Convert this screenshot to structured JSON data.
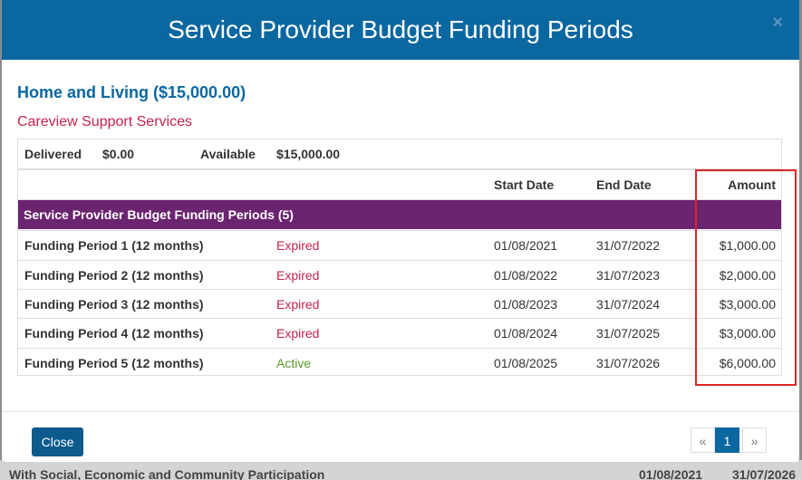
{
  "modal": {
    "title": "Service Provider Budget Funding Periods",
    "close_icon": "×"
  },
  "section": {
    "title": "Home and Living ($15,000.00)",
    "provider": "Careview Support Services"
  },
  "summary": {
    "delivered_label": "Delivered",
    "delivered": "$0.00",
    "available_label": "Available",
    "available": "$15,000.00"
  },
  "table": {
    "headers": [
      "Start Date",
      "End Date",
      "Amount"
    ],
    "group": "Service Provider Budget Funding Periods (5)",
    "rows": [
      [
        "Funding Period 1 (12 months)",
        "Expired",
        "01/08/2021",
        "31/07/2022",
        "$1,000.00"
      ],
      [
        "Funding Period 2 (12 months)",
        "Expired",
        "01/08/2022",
        "31/07/2023",
        "$2,000.00"
      ],
      [
        "Funding Period 3 (12 months)",
        "Expired",
        "01/08/2023",
        "31/07/2024",
        "$3,000.00"
      ],
      [
        "Funding Period 4 (12 months)",
        "Expired",
        "01/08/2024",
        "31/07/2025",
        "$3,000.00"
      ],
      [
        "Funding Period 5 (12 months)",
        "Active",
        "01/08/2025",
        "31/07/2026",
        "$6,000.00"
      ]
    ]
  },
  "footer": {
    "close": "Close",
    "pagination": [
      "«",
      "1",
      "»"
    ]
  },
  "background": {
    "row": [
      "With Social, Economic and Community Participation",
      "01/08/2021",
      "31/07/2026"
    ]
  }
}
